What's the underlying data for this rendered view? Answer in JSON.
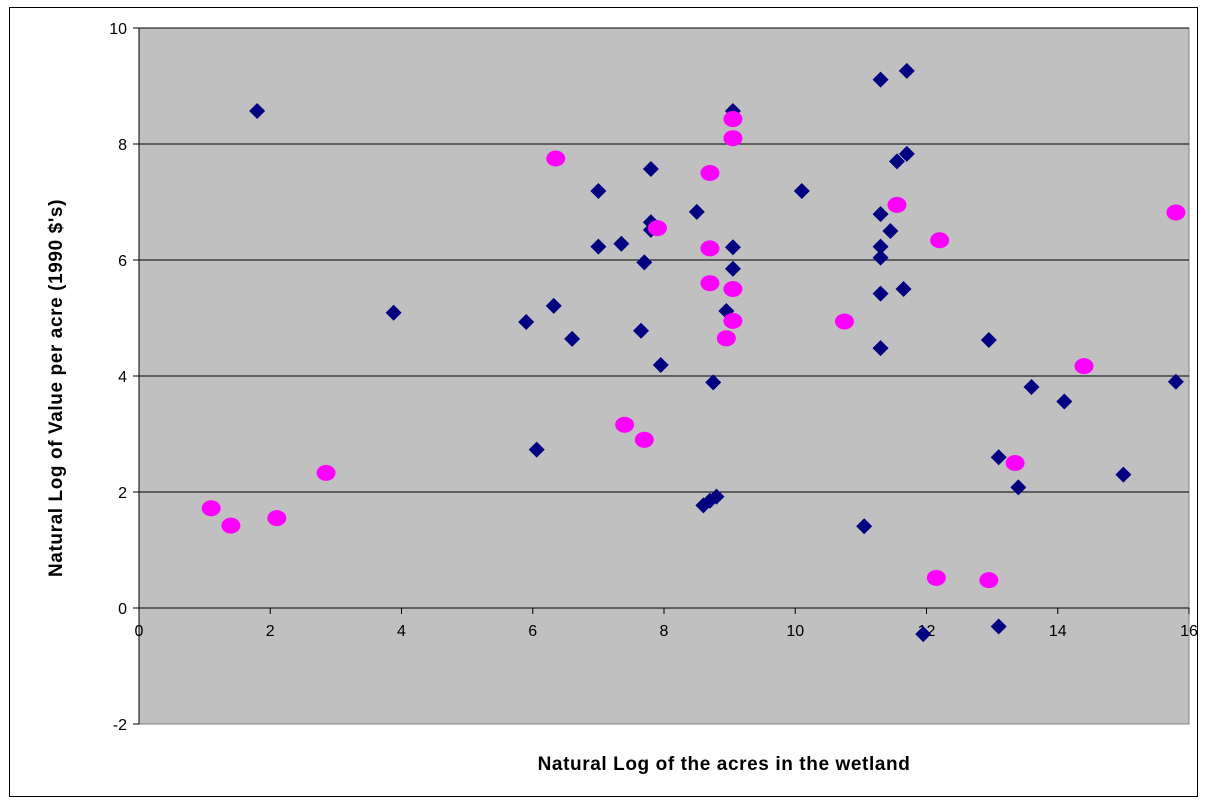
{
  "chart_data": {
    "type": "scatter",
    "title": "",
    "xlabel": "Natural Log of the acres in the wetland",
    "ylabel": "Natural Log of Value per acre (1990 $'s)",
    "xlim": [
      0,
      16
    ],
    "ylim": [
      -2,
      10
    ],
    "x_ticks": [
      "0",
      "2",
      "4",
      "6",
      "8",
      "10",
      "12",
      "14",
      "16"
    ],
    "y_ticks": [
      "-2",
      "0",
      "2",
      "4",
      "6",
      "8",
      "10"
    ],
    "grid": "horizontal major gridlines",
    "legend": "none",
    "colors": {
      "plot_background": "#c0c0c0",
      "gridline": "#000000",
      "series_1": "#000080",
      "series_2": "#ff00ff"
    },
    "series": [
      {
        "marker": "diamond",
        "color": "#000080",
        "points": [
          [
            1.8,
            8.57
          ],
          [
            3.88,
            5.09
          ],
          [
            5.9,
            4.93
          ],
          [
            6.06,
            2.73
          ],
          [
            6.32,
            5.21
          ],
          [
            6.6,
            4.64
          ],
          [
            7.0,
            7.19
          ],
          [
            7.0,
            6.23
          ],
          [
            7.35,
            6.28
          ],
          [
            7.65,
            4.78
          ],
          [
            7.7,
            5.96
          ],
          [
            7.8,
            7.57
          ],
          [
            7.8,
            6.65
          ],
          [
            7.8,
            6.52
          ],
          [
            7.95,
            4.19
          ],
          [
            8.5,
            6.83
          ],
          [
            8.6,
            1.77
          ],
          [
            8.7,
            1.85
          ],
          [
            8.75,
            3.89
          ],
          [
            8.8,
            1.92
          ],
          [
            8.95,
            5.12
          ],
          [
            9.05,
            8.57
          ],
          [
            9.05,
            6.22
          ],
          [
            9.05,
            5.85
          ],
          [
            10.1,
            7.19
          ],
          [
            11.05,
            1.41
          ],
          [
            11.3,
            9.11
          ],
          [
            11.3,
            6.79
          ],
          [
            11.3,
            6.23
          ],
          [
            11.3,
            6.04
          ],
          [
            11.3,
            5.42
          ],
          [
            11.3,
            4.48
          ],
          [
            11.45,
            6.5
          ],
          [
            11.55,
            7.7
          ],
          [
            11.65,
            5.5
          ],
          [
            11.7,
            7.83
          ],
          [
            11.7,
            9.26
          ],
          [
            11.95,
            -0.45
          ],
          [
            12.95,
            4.62
          ],
          [
            13.1,
            2.6
          ],
          [
            13.1,
            -0.32
          ],
          [
            13.4,
            2.08
          ],
          [
            13.6,
            3.81
          ],
          [
            14.1,
            3.56
          ],
          [
            15.0,
            2.3
          ],
          [
            15.8,
            3.9
          ]
        ]
      },
      {
        "marker": "circle",
        "color": "#ff00ff",
        "points": [
          [
            1.1,
            1.72
          ],
          [
            1.4,
            1.42
          ],
          [
            2.1,
            1.55
          ],
          [
            2.85,
            2.33
          ],
          [
            6.35,
            7.75
          ],
          [
            7.4,
            3.16
          ],
          [
            7.7,
            2.9
          ],
          [
            7.9,
            6.55
          ],
          [
            8.7,
            7.5
          ],
          [
            8.7,
            6.2
          ],
          [
            8.7,
            5.6
          ],
          [
            8.95,
            4.65
          ],
          [
            9.05,
            8.43
          ],
          [
            9.05,
            8.1
          ],
          [
            9.05,
            5.5
          ],
          [
            9.05,
            4.95
          ],
          [
            10.75,
            4.94
          ],
          [
            11.55,
            6.95
          ],
          [
            12.2,
            6.34
          ],
          [
            12.15,
            0.52
          ],
          [
            12.95,
            0.48
          ],
          [
            13.35,
            2.5
          ],
          [
            14.4,
            4.17
          ],
          [
            15.8,
            6.82
          ]
        ]
      }
    ]
  }
}
